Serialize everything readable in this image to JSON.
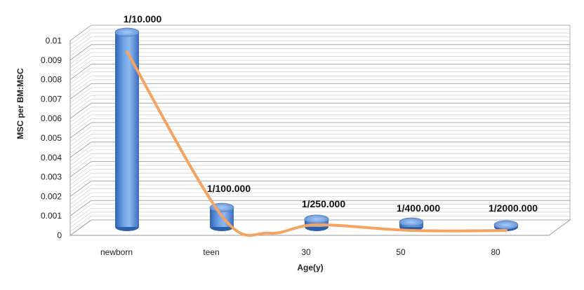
{
  "chart_data": {
    "type": "bar",
    "categories": [
      "newborn",
      "teen",
      "30",
      "50",
      "80"
    ],
    "values": [
      0.01,
      0.001,
      0.0004,
      0.00025,
      5e-05
    ],
    "data_labels": [
      "1/10.000",
      "1/100.000",
      "1/250.000",
      "1/400.000",
      "1/2000.000"
    ],
    "xlabel": "Age(y)",
    "ylabel": "MSC per BM:MSC",
    "ylim": [
      0,
      0.01
    ],
    "yticks": [
      "0",
      "0.001",
      "0.002",
      "0.003",
      "0.004",
      "0.005",
      "0.006",
      "0.007",
      "0.008",
      "0.009",
      "0.01"
    ],
    "grid": true,
    "legend": "none",
    "trendline": true,
    "colors": {
      "bar": "#5b8fd6",
      "bar_dark": "#2f5fa8",
      "trend": "#f4a460",
      "grid": "#b8b8b8"
    }
  }
}
